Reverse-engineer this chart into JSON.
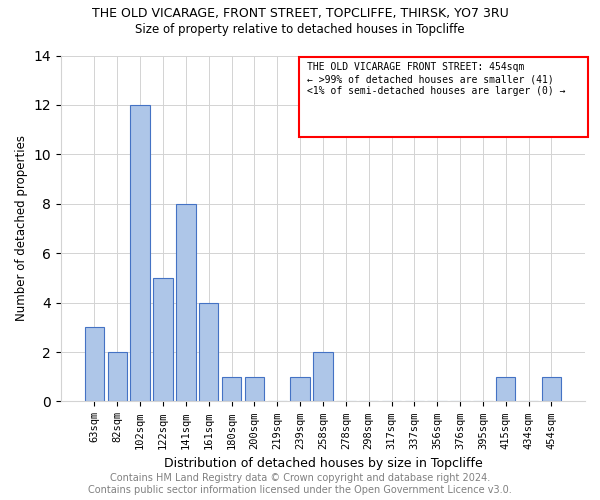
{
  "title": "THE OLD VICARAGE, FRONT STREET, TOPCLIFFE, THIRSK, YO7 3RU",
  "subtitle": "Size of property relative to detached houses in Topcliffe",
  "xlabel": "Distribution of detached houses by size in Topcliffe",
  "ylabel": "Number of detached properties",
  "categories": [
    "63sqm",
    "82sqm",
    "102sqm",
    "122sqm",
    "141sqm",
    "161sqm",
    "180sqm",
    "200sqm",
    "219sqm",
    "239sqm",
    "258sqm",
    "278sqm",
    "298sqm",
    "317sqm",
    "337sqm",
    "356sqm",
    "376sqm",
    "395sqm",
    "415sqm",
    "434sqm",
    "454sqm"
  ],
  "values": [
    3,
    2,
    12,
    5,
    8,
    4,
    1,
    1,
    0,
    1,
    2,
    0,
    0,
    0,
    0,
    0,
    0,
    0,
    1,
    0,
    1
  ],
  "highlight_index": 20,
  "highlight_color": "#aec6e8",
  "bar_color": "#aec6e8",
  "bar_edge_color": "#4472c4",
  "ylim": [
    0,
    14
  ],
  "yticks": [
    0,
    2,
    4,
    6,
    8,
    10,
    12,
    14
  ],
  "legend_title": "THE OLD VICARAGE FRONT STREET: 454sqm",
  "legend_line1": "← >99% of detached houses are smaller (41)",
  "legend_line2": "<1% of semi-detached houses are larger (0) →",
  "footer_line1": "Contains HM Land Registry data © Crown copyright and database right 2024.",
  "footer_line2": "Contains public sector information licensed under the Open Government Licence v3.0."
}
